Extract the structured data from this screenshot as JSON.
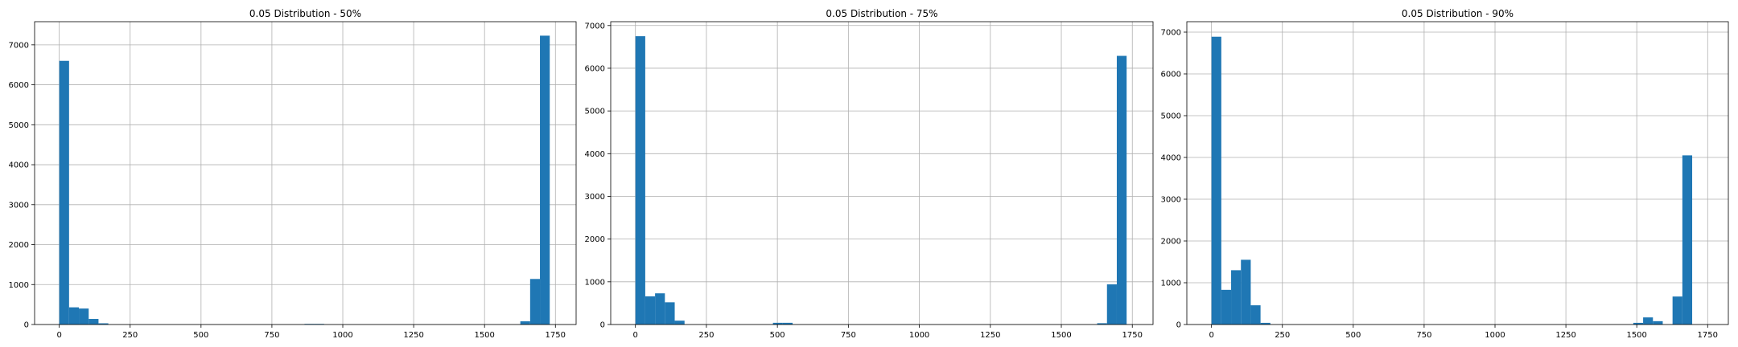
{
  "chart_data": [
    {
      "type": "bar",
      "title": "0.05 Distribution - 50%",
      "xlabel": "",
      "ylabel": "",
      "xlim": [
        -87,
        1823
      ],
      "ylim": [
        0,
        7580
      ],
      "xticks": [
        0,
        250,
        500,
        750,
        1000,
        1250,
        1500,
        1750
      ],
      "yticks": [
        0,
        1000,
        2000,
        3000,
        4000,
        5000,
        6000,
        7000
      ],
      "grid": true,
      "bin_width": 34.6,
      "bins": [
        {
          "x": 0,
          "y": 6600
        },
        {
          "x": 34.6,
          "y": 430
        },
        {
          "x": 69.2,
          "y": 400
        },
        {
          "x": 103.8,
          "y": 140
        },
        {
          "x": 138.4,
          "y": 30
        },
        {
          "x": 865,
          "y": 15
        },
        {
          "x": 899.6,
          "y": 15
        },
        {
          "x": 1626.2,
          "y": 80
        },
        {
          "x": 1660.8,
          "y": 1140
        },
        {
          "x": 1695.4,
          "y": 7230
        }
      ]
    },
    {
      "type": "bar",
      "title": "0.05 Distribution - 75%",
      "xlabel": "",
      "ylabel": "",
      "xlim": [
        -87,
        1823
      ],
      "ylim": [
        0,
        7090
      ],
      "xticks": [
        0,
        250,
        500,
        750,
        1000,
        1250,
        1500,
        1750
      ],
      "yticks": [
        0,
        1000,
        2000,
        3000,
        4000,
        5000,
        6000,
        7000
      ],
      "grid": true,
      "bin_width": 34.6,
      "bins": [
        {
          "x": 0,
          "y": 6750
        },
        {
          "x": 34.6,
          "y": 660
        },
        {
          "x": 69.2,
          "y": 730
        },
        {
          "x": 103.8,
          "y": 520
        },
        {
          "x": 138.4,
          "y": 90
        },
        {
          "x": 484.4,
          "y": 40
        },
        {
          "x": 519,
          "y": 40
        },
        {
          "x": 1626.2,
          "y": 30
        },
        {
          "x": 1660.8,
          "y": 940
        },
        {
          "x": 1695.4,
          "y": 6290
        }
      ]
    },
    {
      "type": "bar",
      "title": "0.05 Distribution - 90%",
      "xlabel": "",
      "ylabel": "",
      "xlim": [
        -87,
        1823
      ],
      "ylim": [
        0,
        7250
      ],
      "xticks": [
        0,
        250,
        500,
        750,
        1000,
        1250,
        1500,
        1750
      ],
      "yticks": [
        0,
        1000,
        2000,
        3000,
        4000,
        5000,
        6000,
        7000
      ],
      "grid": true,
      "bin_width": 34.6,
      "bins": [
        {
          "x": 0,
          "y": 6890
        },
        {
          "x": 34.6,
          "y": 830
        },
        {
          "x": 69.2,
          "y": 1300
        },
        {
          "x": 103.8,
          "y": 1550
        },
        {
          "x": 138.4,
          "y": 460
        },
        {
          "x": 173,
          "y": 40
        },
        {
          "x": 1487.8,
          "y": 40
        },
        {
          "x": 1522.4,
          "y": 170
        },
        {
          "x": 1557,
          "y": 80
        },
        {
          "x": 1626.2,
          "y": 670
        },
        {
          "x": 1660.8,
          "y": 4050
        }
      ]
    }
  ],
  "colors": {
    "bar": "#1f77b4",
    "grid": "#b0b0b0",
    "axis": "#000000",
    "background": "#ffffff"
  }
}
